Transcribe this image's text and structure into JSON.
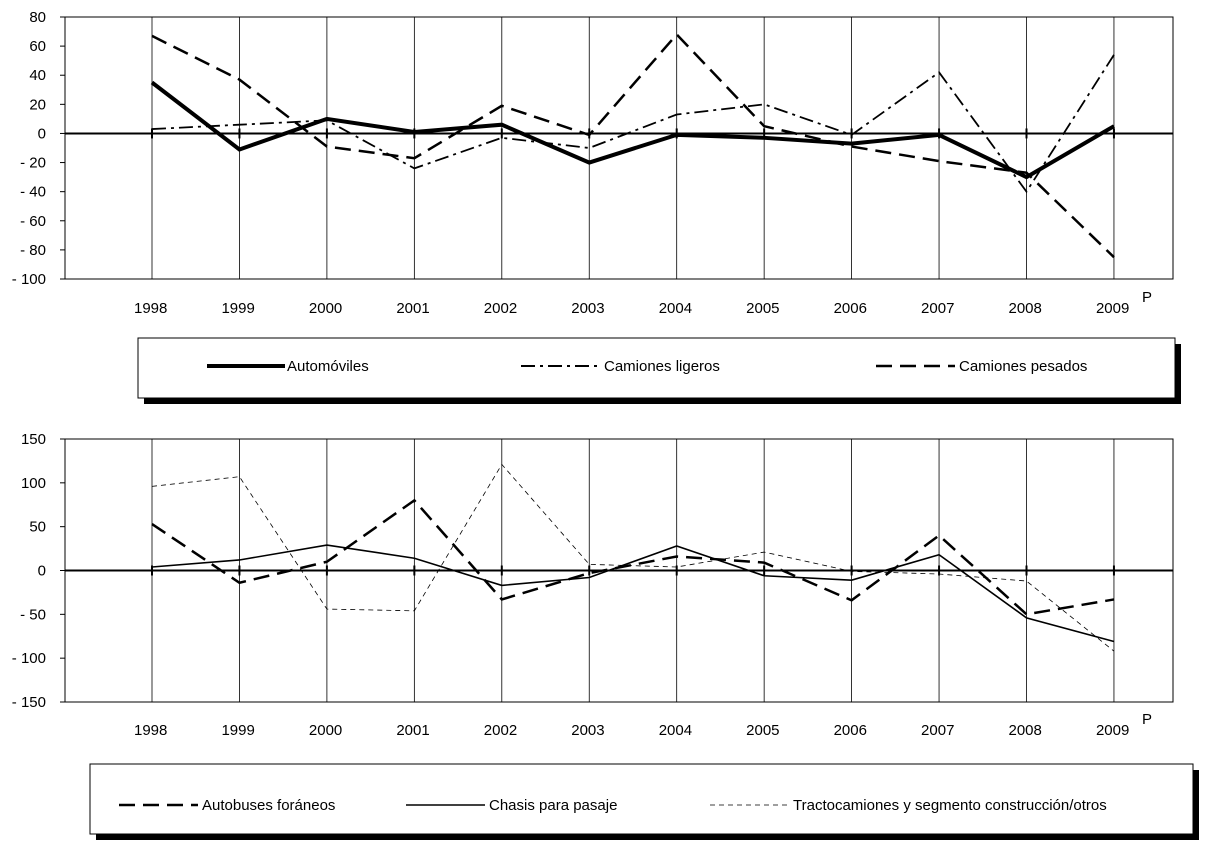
{
  "chart_data": [
    {
      "type": "line",
      "categories": [
        "1998",
        "1999",
        "2000",
        "2001",
        "2002",
        "2003",
        "2004",
        "2005",
        "2006",
        "2007",
        "2008",
        "2009"
      ],
      "category_superscript": {
        "2009": "P"
      },
      "ylim": [
        -100,
        80
      ],
      "yticks": [
        80,
        60,
        40,
        20,
        0,
        -20,
        -40,
        -60,
        -80,
        -100
      ],
      "ytick_labels": [
        "80",
        "60",
        "40",
        "20",
        "0",
        "- 20",
        "- 40",
        "- 60",
        "- 80",
        "- 100"
      ],
      "grid": "vertical",
      "legend_position": "bottom",
      "series": [
        {
          "name": "Automóviles",
          "style": "thick-solid",
          "color": "#000000",
          "values": [
            35,
            -11,
            10,
            1,
            6,
            -20,
            -1,
            -3,
            -7,
            -1,
            -30,
            5
          ]
        },
        {
          "name": "Camiones ligeros",
          "style": "dash-dot",
          "color": "#000000",
          "values": [
            3,
            6,
            9,
            -24,
            -3,
            -10,
            13,
            20,
            -1,
            42,
            -40,
            54
          ]
        },
        {
          "name": "Camiones pesados",
          "style": "dashed",
          "color": "#000000",
          "values": [
            67,
            37,
            -9,
            -17,
            19,
            -1,
            68,
            5,
            -9,
            -19,
            -27,
            -85
          ]
        }
      ]
    },
    {
      "type": "line",
      "categories": [
        "1998",
        "1999",
        "2000",
        "2001",
        "2002",
        "2003",
        "2004",
        "2005",
        "2006",
        "2007",
        "2008",
        "2009"
      ],
      "category_superscript": {
        "2009": "P"
      },
      "ylim": [
        -150,
        150
      ],
      "yticks": [
        150,
        100,
        50,
        0,
        -50,
        -100,
        -150
      ],
      "ytick_labels": [
        "150",
        "100",
        "50",
        "0",
        "- 50",
        "- 100",
        "- 150"
      ],
      "grid": "vertical",
      "legend_position": "bottom",
      "series": [
        {
          "name": "Autobuses foráneos",
          "style": "dashed",
          "color": "#000000",
          "values": [
            53,
            -14,
            10,
            80,
            -33,
            -3,
            16,
            9,
            -34,
            40,
            -50,
            -33
          ]
        },
        {
          "name": "Chasis para pasaje",
          "style": "solid",
          "color": "#000000",
          "values": [
            4,
            12,
            29,
            14,
            -17,
            -8,
            28,
            -6,
            -11,
            18,
            -54,
            -81
          ]
        },
        {
          "name": "Tractocamiones y segmento construcción/otros",
          "style": "thin-dashed",
          "color": "#000000",
          "values": [
            96,
            107,
            -44,
            -46,
            121,
            7,
            4,
            21,
            -1,
            -4,
            -12,
            -92
          ]
        }
      ]
    }
  ]
}
